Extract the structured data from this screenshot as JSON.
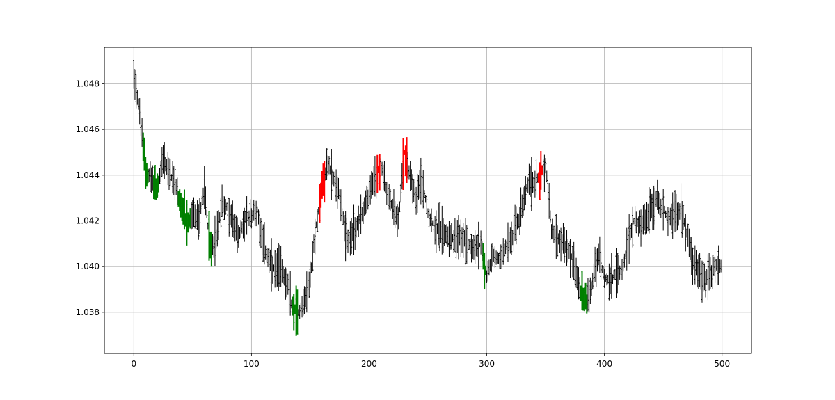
{
  "chart_data": {
    "type": "bar",
    "style": "ohlc-bar",
    "title": "",
    "xlabel": "",
    "ylabel": "",
    "xlim": [
      -25,
      525
    ],
    "ylim": [
      1.0362,
      1.0496
    ],
    "x_ticks": [
      0,
      100,
      200,
      300,
      400,
      500
    ],
    "x_tick_labels": [
      "0",
      "100",
      "200",
      "300",
      "400",
      "500"
    ],
    "y_ticks": [
      1.038,
      1.04,
      1.042,
      1.044,
      1.046,
      1.048
    ],
    "y_tick_labels": [
      "1.038",
      "1.040",
      "1.042",
      "1.044",
      "1.046",
      "1.048"
    ],
    "grid": true,
    "colors": {
      "bars": "#000000",
      "bullish_signal": "#008000",
      "bearish_signal": "#ff0000",
      "grid": "#b0b0b0"
    },
    "series": [
      {
        "x": [
          0,
          5,
          10,
          15,
          20,
          25,
          30,
          35,
          40,
          45,
          50,
          55,
          60,
          65,
          70,
          75,
          80,
          85,
          90,
          95,
          100,
          105,
          110,
          115,
          120,
          125,
          130,
          135,
          140,
          145,
          150,
          155,
          160,
          165,
          170,
          175,
          180,
          185,
          190,
          195,
          200,
          205,
          210,
          215,
          220,
          225,
          230,
          235,
          240,
          245,
          250,
          255,
          260,
          265,
          270,
          275,
          280,
          285,
          290,
          295,
          300,
          305,
          310,
          315,
          320,
          325,
          330,
          335,
          340,
          345,
          350,
          355,
          360,
          365,
          370,
          375,
          380,
          385,
          390,
          395,
          400,
          405,
          410,
          415,
          420,
          425,
          430,
          435,
          440,
          445,
          450,
          455,
          460,
          465,
          470,
          475,
          480,
          485,
          490,
          495,
          500
        ],
        "values": [
          1.0485,
          1.0468,
          1.0442,
          1.0438,
          1.0434,
          1.0447,
          1.0441,
          1.0436,
          1.0427,
          1.0418,
          1.0423,
          1.042,
          1.0434,
          1.0408,
          1.0412,
          1.0428,
          1.0425,
          1.0418,
          1.0414,
          1.0421,
          1.0422,
          1.0425,
          1.041,
          1.0402,
          1.0398,
          1.04,
          1.0393,
          1.0382,
          1.038,
          1.0385,
          1.0395,
          1.0418,
          1.0435,
          1.0445,
          1.0438,
          1.0432,
          1.0412,
          1.0413,
          1.0418,
          1.0425,
          1.0432,
          1.0438,
          1.0446,
          1.0432,
          1.0426,
          1.0421,
          1.045,
          1.044,
          1.0431,
          1.0438,
          1.0424,
          1.0418,
          1.0417,
          1.0414,
          1.0413,
          1.0412,
          1.0413,
          1.041,
          1.0408,
          1.041,
          1.0395,
          1.0405,
          1.0403,
          1.0408,
          1.0411,
          1.0418,
          1.0425,
          1.0436,
          1.0437,
          1.044,
          1.0445,
          1.0416,
          1.0413,
          1.041,
          1.0407,
          1.04,
          1.0388,
          1.0384,
          1.0393,
          1.0405,
          1.0395,
          1.0394,
          1.0397,
          1.0399,
          1.041,
          1.042,
          1.0419,
          1.042,
          1.0426,
          1.043,
          1.0425,
          1.0421,
          1.0423,
          1.0426,
          1.0415,
          1.0402,
          1.0398,
          1.0394,
          1.0397,
          1.04,
          1.04
        ]
      }
    ],
    "signals": {
      "bullish": [
        [
          8,
          12
        ],
        [
          17,
          21
        ],
        [
          38,
          48
        ],
        [
          64,
          66
        ],
        [
          135,
          139
        ],
        [
          297,
          299
        ],
        [
          380,
          385
        ]
      ],
      "bearish": [
        [
          158,
          162
        ],
        [
          207,
          209
        ],
        [
          229,
          232
        ],
        [
          344,
          347
        ]
      ]
    }
  }
}
